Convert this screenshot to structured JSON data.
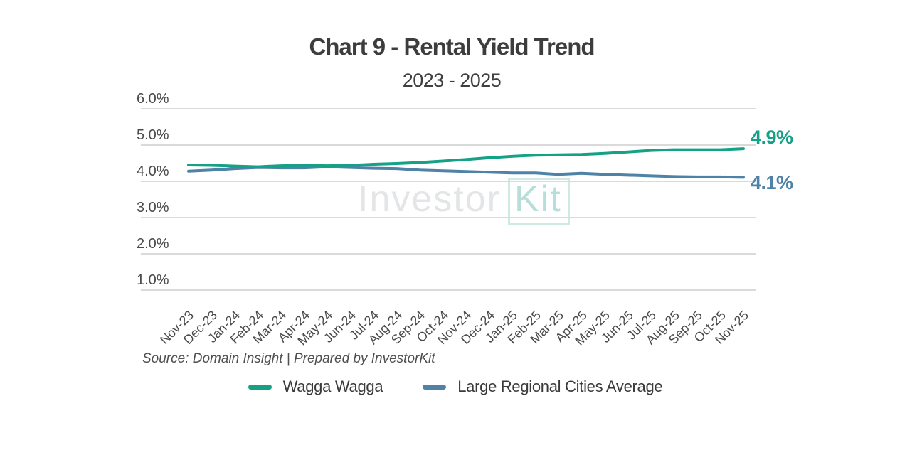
{
  "watermark": {
    "part1": "Investor",
    "part2": "Kit"
  },
  "footer": {
    "source": "Source: Domain Insight | Prepared by InvestorKit"
  },
  "chart_data": {
    "type": "line",
    "title": "Chart 9 - Rental Yield Trend",
    "subtitle": "2023 - 2025",
    "xlabel": "",
    "ylabel": "",
    "ylim": [
      1.0,
      6.0
    ],
    "grid": "horizontal",
    "legend_position": "bottom",
    "x": [
      "Nov-23",
      "Dec-23",
      "Jan-24",
      "Feb-24",
      "Mar-24",
      "Apr-24",
      "May-24",
      "Jun-24",
      "Jul-24",
      "Aug-24",
      "Sep-24",
      "Oct-24",
      "Nov-24",
      "Dec-24",
      "Jan-25",
      "Feb-25",
      "Mar-25",
      "Apr-25",
      "May-25",
      "Jun-25",
      "Jul-25",
      "Aug-25",
      "Sep-25",
      "Oct-25",
      "Nov-25"
    ],
    "y_ticks": [
      {
        "label": "6.0%",
        "value": 6.0
      },
      {
        "label": "5.0%",
        "value": 5.0
      },
      {
        "label": "4.0%",
        "value": 4.0
      },
      {
        "label": "3.0%",
        "value": 3.0
      },
      {
        "label": "2.0%",
        "value": 2.0
      },
      {
        "label": "1.0%",
        "value": 1.0
      }
    ],
    "series": [
      {
        "name": "Wagga Wagga",
        "color": "#14a185",
        "end_label": "4.9%",
        "values": [
          4.45,
          4.44,
          4.42,
          4.4,
          4.43,
          4.44,
          4.43,
          4.44,
          4.47,
          4.49,
          4.52,
          4.56,
          4.6,
          4.65,
          4.69,
          4.72,
          4.73,
          4.74,
          4.77,
          4.81,
          4.85,
          4.87,
          4.87,
          4.87,
          4.9
        ]
      },
      {
        "name": "Large Regional Cities Average",
        "color": "#4e82a6",
        "end_label": "4.1%",
        "values": [
          4.28,
          4.31,
          4.35,
          4.38,
          4.37,
          4.37,
          4.4,
          4.38,
          4.36,
          4.35,
          4.31,
          4.29,
          4.27,
          4.25,
          4.23,
          4.23,
          4.19,
          4.22,
          4.19,
          4.17,
          4.15,
          4.13,
          4.12,
          4.12,
          4.11
        ]
      }
    ]
  }
}
